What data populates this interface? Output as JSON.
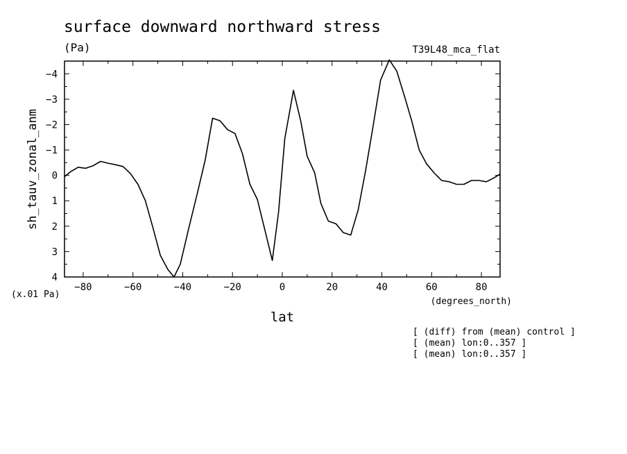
{
  "chart_data": {
    "type": "line",
    "title": "surface downward northward stress",
    "units_label": "(Pa)",
    "run_label": "T39L48_mca_flat",
    "ylabel": "sh_tauv_zonal_anm",
    "xlabel": "lat",
    "x_units_label": "(degrees_north)",
    "y_scale_label": "(x.01 Pa)",
    "xlim": [
      -87.5,
      87.5
    ],
    "ylim": [
      4,
      -4.5
    ],
    "y_inverted": true,
    "grid": false,
    "x_ticks": [
      -80,
      -60,
      -40,
      -20,
      0,
      20,
      40,
      60,
      80
    ],
    "x_tick_labels": [
      "−80",
      "−60",
      "−40",
      "−20",
      "0",
      "20",
      "40",
      "60",
      "80"
    ],
    "y_ticks": [
      -4,
      -3,
      -2,
      -1,
      0,
      1,
      2,
      3,
      4
    ],
    "y_tick_labels": [
      "−4",
      "−3",
      "−2",
      "−1",
      "0",
      "1",
      "2",
      "3",
      "4"
    ],
    "annotations": [
      "[ (diff) from (mean) control ]",
      "[ (mean) lon:0..357 ]",
      "[ (mean) lon:0..357 ]"
    ],
    "series": [
      {
        "x": [
          -87.5,
          -85,
          -82,
          -79,
          -76,
          -73,
          -70,
          -67,
          -64,
          -61,
          -58,
          -55,
          -52,
          -49,
          -46,
          -43.5,
          -41,
          -37.5,
          -34,
          -31,
          -28,
          -25,
          -22,
          -19,
          -16,
          -13,
          -10,
          -7,
          -4,
          -1.5,
          1,
          4.5,
          7.5,
          10,
          13,
          15.5,
          18.5,
          21.5,
          24.5,
          27.5,
          30.5,
          33.5,
          36.5,
          39.5,
          43,
          46,
          49,
          52,
          55,
          58,
          61,
          64,
          67,
          70,
          73,
          76,
          79,
          82,
          85,
          87.5
        ],
        "y": [
          0.05,
          -0.15,
          -0.32,
          -0.28,
          -0.38,
          -0.55,
          -0.48,
          -0.42,
          -0.35,
          -0.07,
          0.35,
          1.0,
          2.05,
          3.15,
          3.7,
          4.0,
          3.5,
          2.05,
          0.65,
          -0.6,
          -2.25,
          -2.15,
          -1.8,
          -1.65,
          -0.85,
          0.35,
          0.95,
          2.15,
          3.35,
          1.45,
          -1.45,
          -3.35,
          -2.1,
          -0.75,
          -0.1,
          1.1,
          1.8,
          1.9,
          2.25,
          2.35,
          1.35,
          -0.2,
          -1.95,
          -3.75,
          -4.55,
          -4.1,
          -3.15,
          -2.15,
          -1.0,
          -0.45,
          -0.1,
          0.2,
          0.25,
          0.35,
          0.35,
          0.2,
          0.2,
          0.25,
          0.1,
          -0.05
        ]
      }
    ]
  }
}
